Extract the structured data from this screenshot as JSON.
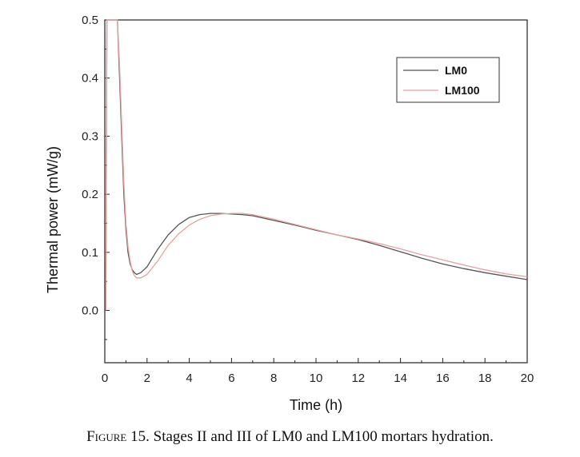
{
  "chart_data": {
    "type": "line",
    "title": "",
    "xlabel": "Time (h)",
    "ylabel": "Thermal power (mW/g)",
    "xlim": [
      0,
      20
    ],
    "ylim": [
      -0.09,
      0.5
    ],
    "x_ticks": [
      "0",
      "2",
      "4",
      "6",
      "8",
      "10",
      "12",
      "14",
      "16",
      "18",
      "20"
    ],
    "y_ticks": [
      "0.0",
      "0.1",
      "0.2",
      "0.3",
      "0.4",
      "0.5"
    ],
    "grid": false,
    "legend_position": "top-right",
    "series": [
      {
        "name": "LM0",
        "color": "#555555",
        "x": [
          0.05,
          0.1,
          0.15,
          0.2,
          0.3,
          0.45,
          0.6,
          0.7,
          0.8,
          0.9,
          1.0,
          1.1,
          1.2,
          1.3,
          1.4,
          1.5,
          1.7,
          2.0,
          2.5,
          3.0,
          3.5,
          4.0,
          4.5,
          5.0,
          5.5,
          6.0,
          6.5,
          7.0,
          8.0,
          9.0,
          10.0,
          11.0,
          12.0,
          13.0,
          14.0,
          15.0,
          16.0,
          17.0,
          18.0,
          19.0,
          20.0
        ],
        "y": [
          0.0,
          0.5,
          0.5,
          0.5,
          0.5,
          0.5,
          0.5,
          0.4,
          0.3,
          0.2,
          0.14,
          0.1,
          0.08,
          0.07,
          0.065,
          0.062,
          0.065,
          0.075,
          0.105,
          0.13,
          0.148,
          0.16,
          0.165,
          0.167,
          0.167,
          0.166,
          0.165,
          0.163,
          0.155,
          0.147,
          0.138,
          0.13,
          0.122,
          0.112,
          0.101,
          0.09,
          0.08,
          0.072,
          0.065,
          0.059,
          0.053
        ]
      },
      {
        "name": "LM100",
        "color": "#e6a0a0",
        "x": [
          0.05,
          0.1,
          0.15,
          0.2,
          0.3,
          0.45,
          0.6,
          0.7,
          0.8,
          0.9,
          1.0,
          1.1,
          1.2,
          1.3,
          1.4,
          1.5,
          1.7,
          2.0,
          2.5,
          3.0,
          3.5,
          4.0,
          4.5,
          5.0,
          5.5,
          6.0,
          6.5,
          7.0,
          8.0,
          9.0,
          10.0,
          11.0,
          12.0,
          13.0,
          14.0,
          15.0,
          16.0,
          17.0,
          18.0,
          19.0,
          20.0
        ],
        "y": [
          0.0,
          0.5,
          0.5,
          0.5,
          0.5,
          0.5,
          0.5,
          0.42,
          0.32,
          0.22,
          0.15,
          0.11,
          0.085,
          0.068,
          0.06,
          0.056,
          0.056,
          0.062,
          0.085,
          0.112,
          0.132,
          0.147,
          0.157,
          0.163,
          0.166,
          0.167,
          0.167,
          0.165,
          0.157,
          0.148,
          0.139,
          0.13,
          0.123,
          0.115,
          0.106,
          0.096,
          0.087,
          0.078,
          0.07,
          0.063,
          0.058
        ]
      }
    ]
  },
  "caption": {
    "label": "Figure 15.",
    "text": " Stages II and III of LM0 and LM100 mortars hydration."
  }
}
